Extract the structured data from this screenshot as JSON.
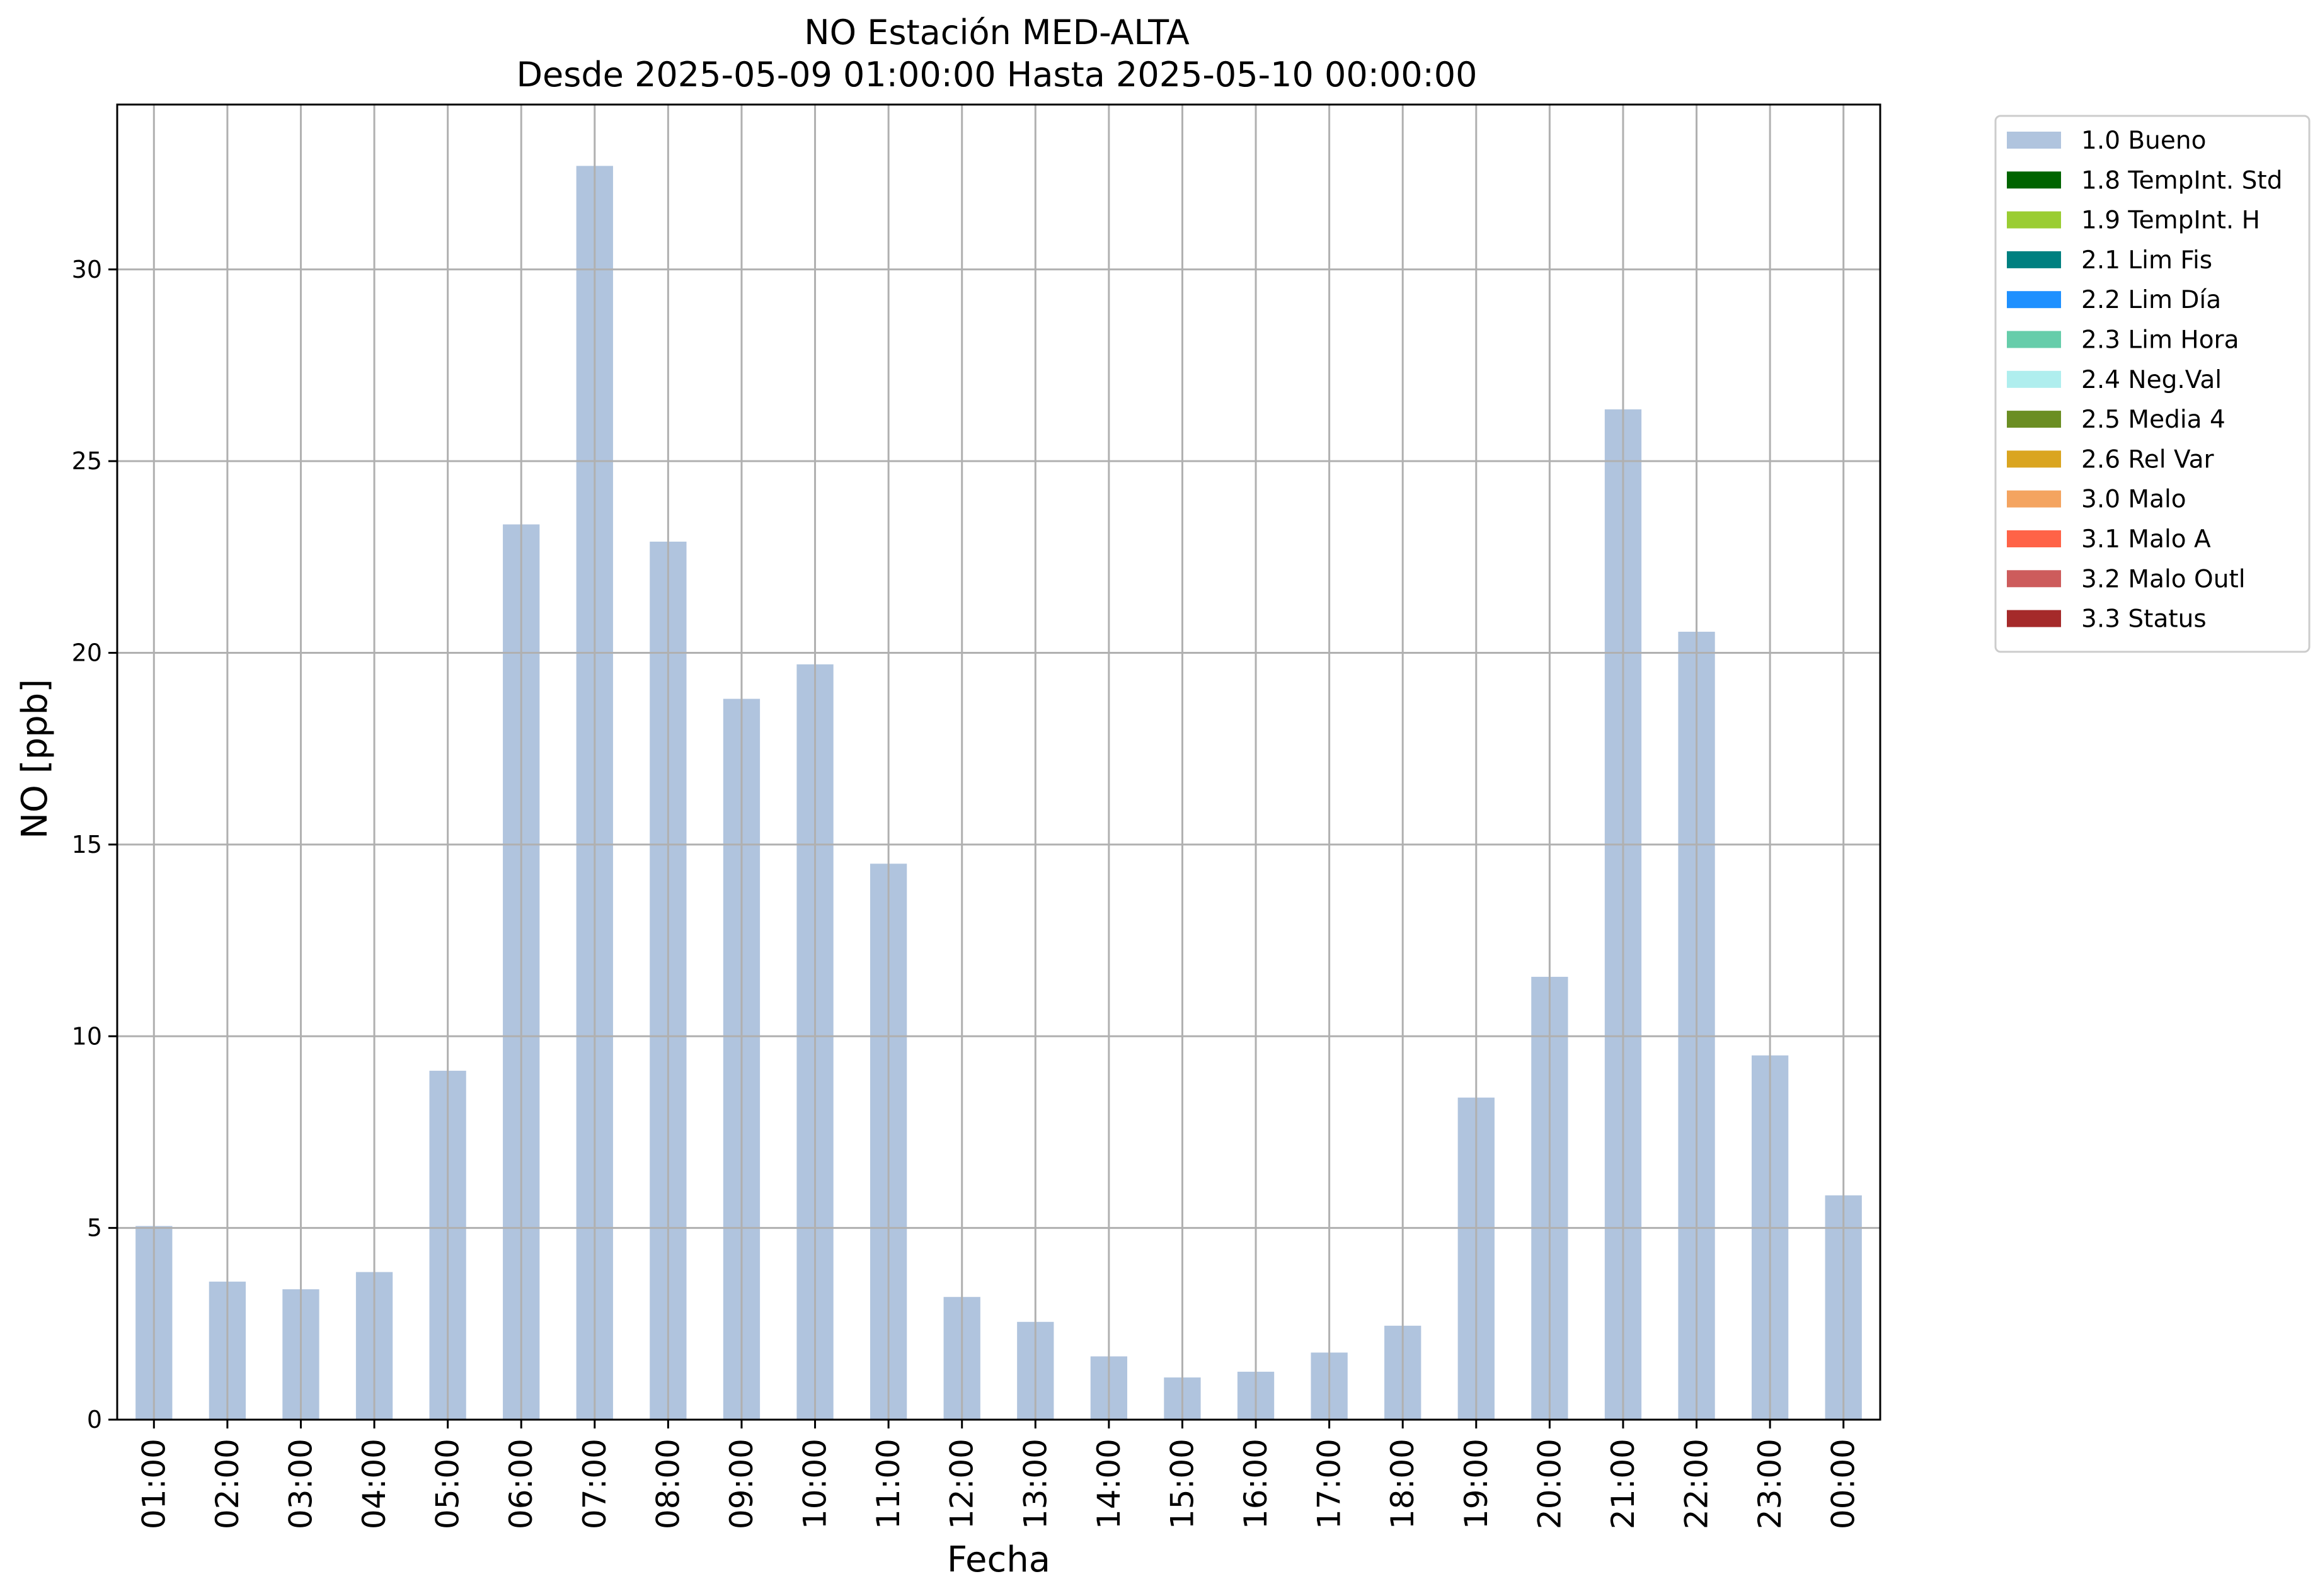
{
  "chart_data": {
    "type": "bar",
    "title": "NO Estación MED-ALTA",
    "subtitle": "Desde 2025-05-09 01:00:00 Hasta 2025-05-10 00:00:00",
    "xlabel": "Fecha",
    "ylabel": "NO [ppb]",
    "ylim": [
      0,
      34.3
    ],
    "yticks": [
      0,
      5,
      10,
      15,
      20,
      25,
      30
    ],
    "grid": true,
    "legend_position": "outside-top-right",
    "categories": [
      "01:00",
      "02:00",
      "03:00",
      "04:00",
      "05:00",
      "06:00",
      "07:00",
      "08:00",
      "09:00",
      "10:00",
      "11:00",
      "12:00",
      "13:00",
      "14:00",
      "15:00",
      "16:00",
      "17:00",
      "18:00",
      "19:00",
      "20:00",
      "21:00",
      "22:00",
      "23:00",
      "00:00"
    ],
    "series": [
      {
        "name": "1.0 Bueno",
        "color": "#b0c4de",
        "values": [
          5.05,
          3.6,
          3.4,
          3.85,
          9.1,
          23.35,
          32.7,
          22.9,
          18.8,
          19.7,
          14.5,
          3.2,
          2.55,
          1.65,
          1.1,
          1.25,
          1.75,
          2.45,
          8.4,
          11.55,
          26.35,
          20.55,
          9.5,
          5.85
        ]
      }
    ],
    "legend": [
      {
        "label": "1.0 Bueno",
        "color": "#b0c4de"
      },
      {
        "label": "1.8 TempInt. Std",
        "color": "#006400"
      },
      {
        "label": "1.9 TempInt. H",
        "color": "#9acd32"
      },
      {
        "label": "2.1 Lim Fis",
        "color": "#008080"
      },
      {
        "label": "2.2 Lim Día",
        "color": "#1e90ff"
      },
      {
        "label": "2.3 Lim Hora",
        "color": "#66cdaa"
      },
      {
        "label": "2.4 Neg.Val",
        "color": "#afeeee"
      },
      {
        "label": "2.5 Media 4",
        "color": "#6b8e23"
      },
      {
        "label": "2.6 Rel Var",
        "color": "#daa520"
      },
      {
        "label": "3.0 Malo",
        "color": "#f4a460"
      },
      {
        "label": "3.1 Malo A",
        "color": "#ff6347"
      },
      {
        "label": "3.2 Malo Outl",
        "color": "#cd5c5c"
      },
      {
        "label": "3.3 Status",
        "color": "#a52a2a"
      }
    ]
  }
}
